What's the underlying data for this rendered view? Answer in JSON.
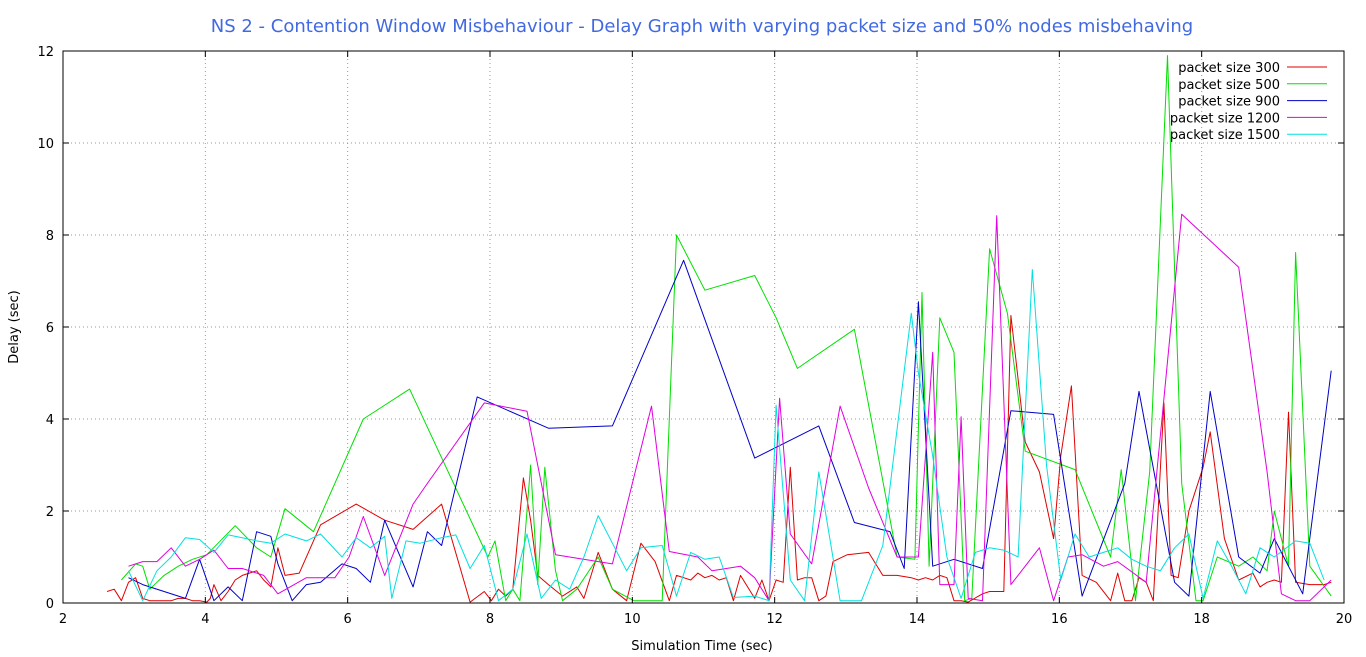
{
  "chart_data": {
    "type": "line",
    "title": "NS 2 - Contention Window Misbehaviour - Delay Graph with varying packet size and 50% nodes misbehaving",
    "title_color": "#4169e1",
    "xlabel": "Simulation Time (sec)",
    "ylabel": "Delay (sec)",
    "xlim": [
      2,
      20
    ],
    "ylim": [
      0,
      12
    ],
    "xticks": [
      2,
      4,
      6,
      8,
      10,
      12,
      14,
      16,
      18,
      20
    ],
    "yticks": [
      0,
      2,
      4,
      6,
      8,
      10,
      12
    ],
    "grid": true,
    "grid_style": "dotted",
    "legend_position": "top-right",
    "series": [
      {
        "name": "packet size 300",
        "color": "#e00000",
        "x": [
          2.62,
          2.72,
          2.82,
          2.92,
          3.02,
          3.12,
          3.22,
          3.32,
          3.42,
          3.52,
          3.62,
          3.72,
          3.82,
          3.92,
          4.02,
          4.07,
          4.12,
          4.22,
          4.32,
          4.42,
          4.52,
          4.72,
          4.82,
          4.92,
          5.02,
          5.12,
          5.32,
          5.62,
          6.12,
          6.52,
          6.92,
          7.32,
          7.72,
          7.92,
          8.02,
          8.12,
          8.22,
          8.32,
          8.47,
          8.57,
          8.67,
          8.82,
          9.02,
          9.22,
          9.32,
          9.52,
          9.72,
          9.92,
          10.12,
          10.32,
          10.52,
          10.62,
          10.72,
          10.82,
          10.92,
          11.02,
          11.12,
          11.22,
          11.32,
          11.42,
          11.52,
          11.62,
          11.72,
          11.82,
          11.92,
          12.02,
          12.12,
          12.22,
          12.32,
          12.42,
          12.52,
          12.62,
          12.72,
          12.82,
          13.02,
          13.32,
          13.52,
          13.72,
          13.92,
          14.02,
          14.12,
          14.22,
          14.32,
          14.42,
          14.52,
          14.62,
          14.72,
          14.92,
          15.02,
          15.22,
          15.32,
          15.52,
          15.72,
          15.92,
          16.02,
          16.17,
          16.32,
          16.52,
          16.72,
          16.82,
          16.92,
          17.02,
          17.12,
          17.22,
          17.32,
          17.47,
          17.57,
          17.67,
          17.82,
          18.02,
          18.12,
          18.32,
          18.52,
          18.72,
          18.82,
          18.92,
          19.02,
          19.12,
          19.22,
          19.32,
          19.52,
          19.72,
          19.82
        ],
        "y": [
          0.25,
          0.3,
          0.05,
          0.45,
          0.55,
          0.1,
          0.05,
          0.05,
          0.05,
          0.05,
          0.1,
          0.1,
          0.05,
          0.05,
          0.02,
          0.1,
          0.4,
          0.05,
          0.25,
          0.5,
          0.6,
          0.7,
          0.5,
          0.35,
          1.2,
          0.6,
          0.65,
          1.7,
          2.15,
          1.8,
          1.6,
          2.15,
          0.02,
          0.25,
          0.05,
          0.3,
          0.15,
          0.3,
          2.72,
          1.8,
          0.6,
          0.4,
          0.15,
          0.35,
          0.1,
          1.1,
          0.3,
          0.05,
          1.3,
          0.9,
          0.05,
          0.6,
          0.55,
          0.5,
          0.65,
          0.55,
          0.6,
          0.5,
          0.55,
          0.05,
          0.6,
          0.35,
          0.1,
          0.5,
          0.05,
          0.5,
          0.45,
          2.95,
          0.5,
          0.55,
          0.55,
          0.05,
          0.15,
          0.9,
          1.05,
          1.1,
          0.6,
          0.6,
          0.55,
          0.5,
          0.55,
          0.5,
          0.6,
          0.55,
          0.05,
          0.05,
          0.02,
          0.2,
          0.25,
          0.25,
          6.25,
          3.5,
          2.85,
          1.4,
          3.2,
          4.72,
          0.6,
          0.45,
          0.05,
          0.65,
          0.05,
          0.05,
          0.55,
          0.45,
          0.05,
          4.35,
          0.6,
          0.55,
          2.0,
          2.95,
          3.72,
          1.4,
          0.5,
          0.65,
          0.35,
          0.45,
          0.5,
          0.45,
          4.15,
          0.45,
          0.4,
          0.4,
          0.45
        ]
      },
      {
        "name": "packet size 500",
        "color": "#00e000",
        "x": [
          2.82,
          3.02,
          3.12,
          3.22,
          3.42,
          3.62,
          3.82,
          4.02,
          4.42,
          4.72,
          4.92,
          5.12,
          5.52,
          6.22,
          6.87,
          7.97,
          8.07,
          8.22,
          8.32,
          8.42,
          8.57,
          8.67,
          8.77,
          8.92,
          9.02,
          9.22,
          9.52,
          9.72,
          10.02,
          10.42,
          10.62,
          11.02,
          11.72,
          12.02,
          12.32,
          13.12,
          13.72,
          13.97,
          14.07,
          14.17,
          14.32,
          14.52,
          14.67,
          14.77,
          15.02,
          15.27,
          15.52,
          16.22,
          16.72,
          16.87,
          17.07,
          17.27,
          17.52,
          17.72,
          17.92,
          18.02,
          18.22,
          18.52,
          18.72,
          18.92,
          19.02,
          19.22,
          19.32,
          19.52,
          19.82
        ],
        "y": [
          0.5,
          0.85,
          0.8,
          0.3,
          0.6,
          0.8,
          0.95,
          1.05,
          1.68,
          1.2,
          1.0,
          2.05,
          1.55,
          4.0,
          4.65,
          1.0,
          1.35,
          0.05,
          0.3,
          0.05,
          3.0,
          0.4,
          2.95,
          0.7,
          0.05,
          0.3,
          1.0,
          0.3,
          0.05,
          0.05,
          8.0,
          6.8,
          7.12,
          6.2,
          5.1,
          5.95,
          1.0,
          0.95,
          6.75,
          0.8,
          6.2,
          5.45,
          0.05,
          0.1,
          7.7,
          6.3,
          3.3,
          2.9,
          1.0,
          2.9,
          0.05,
          2.85,
          11.9,
          2.6,
          0.05,
          0.05,
          1.0,
          0.8,
          1.0,
          0.7,
          2.0,
          0.8,
          7.62,
          0.8,
          0.15
        ]
      },
      {
        "name": "packet size 900",
        "color": "#0000c8",
        "x": [
          2.92,
          3.12,
          3.72,
          3.92,
          4.12,
          4.32,
          4.52,
          4.72,
          4.92,
          5.02,
          5.22,
          5.42,
          5.62,
          5.92,
          6.12,
          6.32,
          6.52,
          6.92,
          7.12,
          7.32,
          7.82,
          8.82,
          9.72,
          10.72,
          11.72,
          12.62,
          13.12,
          13.62,
          13.82,
          14.02,
          14.22,
          14.52,
          14.92,
          15.32,
          15.92,
          16.32,
          16.92,
          17.12,
          17.62,
          17.82,
          18.12,
          18.52,
          18.82,
          19.02,
          19.42,
          19.82
        ],
        "y": [
          0.55,
          0.4,
          0.1,
          0.95,
          0.05,
          0.35,
          0.05,
          1.55,
          1.45,
          0.85,
          0.05,
          0.4,
          0.45,
          0.85,
          0.75,
          0.45,
          1.8,
          0.35,
          1.55,
          1.25,
          4.48,
          3.8,
          3.85,
          7.45,
          3.15,
          3.85,
          1.75,
          1.55,
          0.75,
          6.55,
          0.8,
          0.95,
          0.75,
          4.18,
          4.1,
          0.15,
          2.6,
          4.6,
          0.45,
          0.15,
          4.6,
          1.0,
          0.65,
          1.4,
          0.2,
          5.05
        ]
      },
      {
        "name": "packet size 1200",
        "color": "#e000e0",
        "x": [
          2.92,
          3.12,
          3.32,
          3.52,
          3.72,
          3.92,
          4.12,
          4.32,
          4.52,
          4.82,
          5.02,
          5.42,
          5.82,
          6.02,
          6.22,
          6.52,
          6.92,
          7.12,
          7.92,
          8.52,
          8.92,
          9.72,
          10.27,
          10.52,
          10.92,
          11.12,
          11.52,
          11.72,
          11.92,
          12.07,
          12.22,
          12.52,
          12.92,
          13.32,
          13.72,
          14.02,
          14.22,
          14.32,
          14.52,
          14.62,
          14.72,
          14.92,
          15.12,
          15.32,
          15.72,
          15.92,
          16.12,
          16.32,
          16.62,
          16.82,
          17.22,
          17.72,
          18.52,
          18.92,
          19.12,
          19.32,
          19.52,
          19.82
        ],
        "y": [
          0.8,
          0.9,
          0.9,
          1.2,
          0.8,
          0.95,
          1.15,
          0.75,
          0.75,
          0.6,
          0.2,
          0.55,
          0.55,
          1.0,
          1.88,
          0.6,
          2.15,
          2.6,
          4.35,
          4.17,
          1.05,
          0.85,
          4.28,
          1.12,
          1.0,
          0.7,
          0.8,
          0.55,
          0.05,
          4.45,
          1.5,
          0.85,
          4.28,
          2.5,
          1.0,
          1.0,
          5.45,
          0.4,
          0.4,
          4.05,
          0.1,
          0.05,
          8.42,
          0.4,
          1.2,
          0.05,
          1.0,
          1.05,
          0.8,
          0.9,
          0.45,
          8.45,
          7.3,
          2.85,
          0.2,
          0.05,
          0.05,
          0.5
        ]
      },
      {
        "name": "packet size 1500",
        "color": "#00e0e0",
        "x": [
          2.92,
          3.12,
          3.32,
          3.52,
          3.72,
          3.92,
          4.12,
          4.32,
          4.52,
          4.72,
          4.92,
          5.12,
          5.42,
          5.62,
          5.92,
          6.12,
          6.32,
          6.52,
          6.62,
          6.82,
          7.02,
          7.32,
          7.52,
          7.72,
          7.92,
          8.12,
          8.32,
          8.52,
          8.72,
          8.92,
          9.12,
          9.32,
          9.52,
          9.72,
          9.92,
          10.12,
          10.42,
          10.62,
          10.82,
          11.02,
          11.22,
          11.42,
          11.72,
          11.92,
          12.02,
          12.22,
          12.42,
          12.62,
          12.92,
          13.22,
          13.52,
          13.92,
          14.02,
          14.22,
          14.42,
          14.62,
          14.82,
          15.02,
          15.22,
          15.42,
          15.62,
          15.82,
          16.02,
          16.22,
          16.42,
          16.62,
          16.82,
          17.02,
          17.22,
          17.42,
          17.62,
          17.82,
          18.02,
          18.22,
          18.42,
          18.62,
          18.82,
          19.02,
          19.32,
          19.52,
          19.72
        ],
        "y": [
          0.7,
          0.05,
          0.7,
          1.0,
          1.42,
          1.38,
          1.1,
          1.48,
          1.42,
          1.35,
          1.3,
          1.5,
          1.35,
          1.5,
          1.0,
          1.42,
          1.2,
          1.45,
          0.1,
          1.35,
          1.3,
          1.42,
          1.48,
          0.75,
          1.25,
          0.05,
          0.3,
          1.5,
          0.1,
          0.5,
          0.3,
          1.0,
          1.9,
          1.3,
          0.7,
          1.2,
          1.25,
          0.15,
          1.1,
          0.95,
          1.0,
          0.12,
          0.15,
          0.05,
          4.3,
          0.5,
          0.05,
          2.85,
          0.05,
          0.05,
          1.25,
          6.3,
          5.0,
          3.2,
          1.0,
          0.1,
          1.1,
          1.2,
          1.15,
          1.0,
          7.25,
          3.0,
          0.5,
          1.5,
          1.0,
          1.1,
          1.2,
          0.95,
          0.8,
          0.7,
          1.2,
          1.5,
          0.1,
          1.35,
          0.8,
          0.2,
          1.2,
          1.0,
          1.35,
          1.3,
          0.5
        ]
      }
    ]
  }
}
